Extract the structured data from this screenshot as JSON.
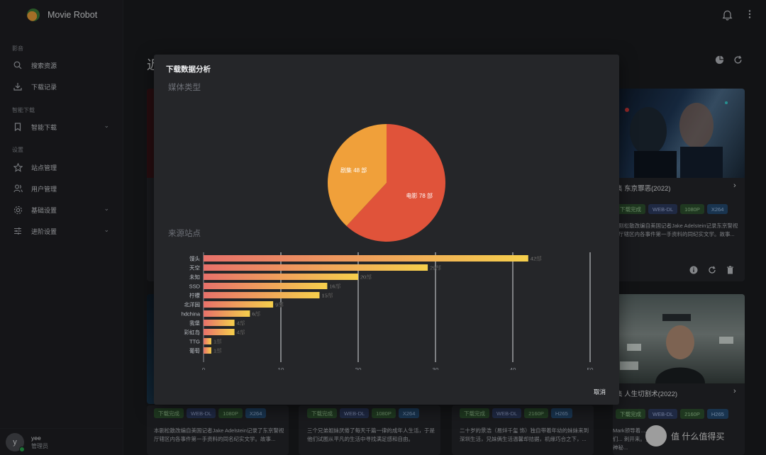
{
  "app": {
    "name": "Movie Robot"
  },
  "sidebar": {
    "section_media": "影音",
    "section_smart": "智能下载",
    "section_settings": "设置",
    "items": [
      {
        "label": "搜索资源",
        "icon": "search-icon"
      },
      {
        "label": "下载记录",
        "icon": "download-icon"
      },
      {
        "label": "智能下载",
        "icon": "bookmark-icon"
      },
      {
        "label": "站点管理",
        "icon": "star-icon"
      },
      {
        "label": "用户管理",
        "icon": "users-icon"
      },
      {
        "label": "基础设置",
        "icon": "gear-icon"
      },
      {
        "label": "进阶设置",
        "icon": "sliders-icon"
      }
    ],
    "user": {
      "initial": "y",
      "name": "yee",
      "role": "管理员"
    }
  },
  "page": {
    "title_fragment": "近"
  },
  "cards": [
    {
      "title": "集 东京罪恶(2022)",
      "tags": [
        "下载完成",
        "WEB-DL",
        "1080P",
        "X264"
      ],
      "desc": "剧松散改编自美国记者Jake Adelstein记录东京警视厅辖区内各事件第一手资料的同纪实文学。故事..."
    },
    {
      "title": "集 人生切割术(2022)",
      "tags": [
        "下载完成",
        "WEB-DL",
        "2160P",
        "H265"
      ],
      "desc": "Mark领导着..., 他们... 刺开来。当一个神秘..."
    },
    {
      "title": "",
      "tags": [
        "下载完成",
        "WEB-DL",
        "1080P",
        "X264"
      ],
      "desc": "本剧松散改编自美国记者Jake Adelstein记录了东京警视厅辖区内各事件第一手资料的同名纪实文学。故事..."
    },
    {
      "title": "",
      "tags": [
        "下载完成",
        "WEB-DL",
        "1080P",
        "X264"
      ],
      "desc": "三个兄弟姐妹厌倦了每天千篇一律的成年人生活，于是他们试图从平凡的生活中寻找满足感和自由。"
    },
    {
      "title": "",
      "tags": [
        "下载完成",
        "WEB-DL",
        "2160P",
        "H265"
      ],
      "desc": "二十岁的景浩（易烊千玺 饰）独自带着年幼的妹妹来到深圳生活，兄妹俩生活温馨却拮据，机缘巧合之下，..."
    }
  ],
  "modal": {
    "title": "下载数据分析",
    "section_media": "媒体类型",
    "section_sites": "来源站点",
    "cancel_label": "取消"
  },
  "watermark": "值 什么值得买",
  "chart_data": [
    {
      "type": "pie",
      "title": "媒体类型",
      "slices": [
        {
          "label": "电影 78 部",
          "name": "电影",
          "value": 78,
          "color": "#e0533a"
        },
        {
          "label": "剧集 48 部",
          "name": "剧集",
          "value": 48,
          "color": "#f0a03a"
        }
      ]
    },
    {
      "type": "bar",
      "orientation": "horizontal",
      "title": "来源站点",
      "categories": [
        "馒头",
        "天空",
        "未知",
        "SSD",
        "柠檬",
        "北洋园",
        "hdchina",
        "我堡",
        "彩虹岛",
        "TTG",
        "葡萄"
      ],
      "values": [
        42,
        29,
        20,
        16,
        15,
        9,
        6,
        4,
        4,
        1,
        1
      ],
      "value_labels": [
        "42部",
        "29部",
        "20部",
        "16部",
        "15部",
        "9部",
        "6部",
        "4部",
        "4部",
        "1部",
        "1部"
      ],
      "xlim": [
        0,
        50
      ],
      "xticks": [
        0,
        10,
        20,
        30,
        40,
        50
      ],
      "grid": true,
      "colors": {
        "start": "#e8716a",
        "end": "#f6cf4c"
      }
    }
  ]
}
